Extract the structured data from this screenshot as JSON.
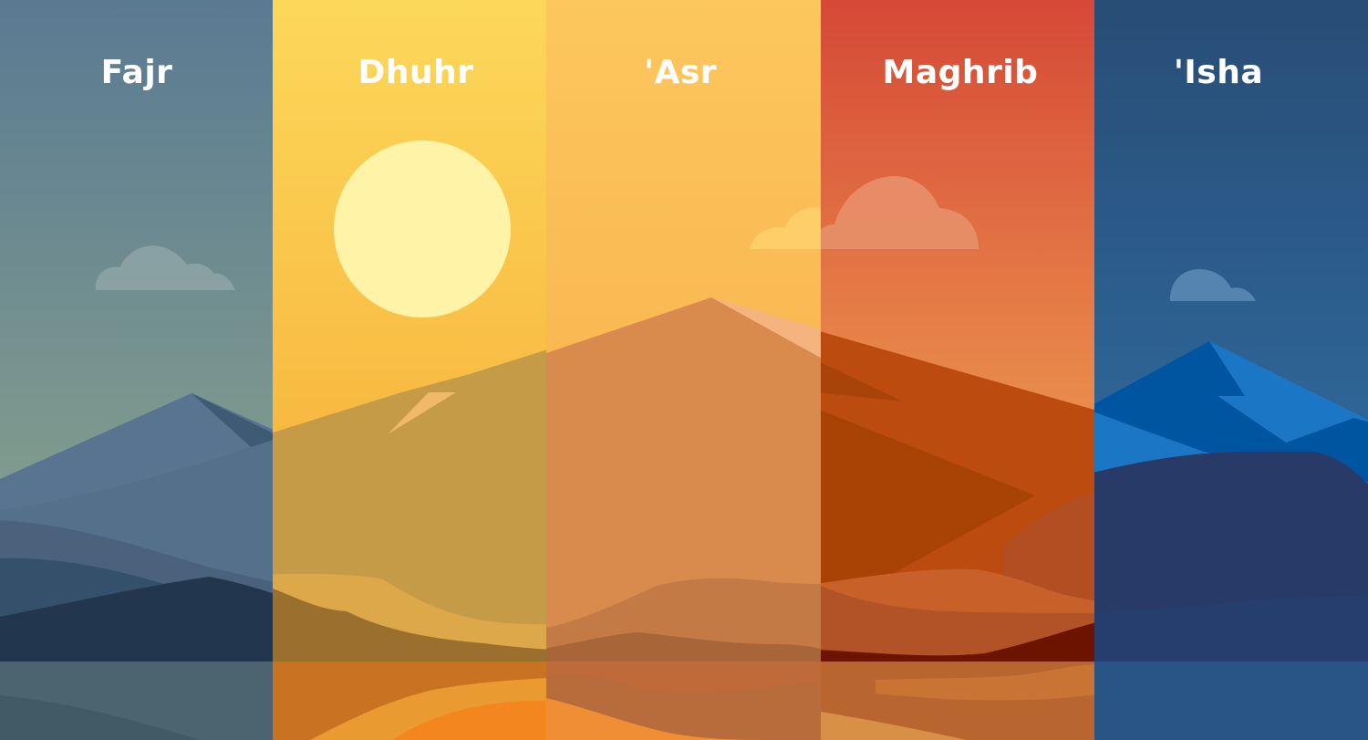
{
  "panels": [
    {
      "name": "Fajr"
    },
    {
      "name": "Dhuhr"
    },
    {
      "name": "'Asr"
    },
    {
      "name": "Maghrib"
    },
    {
      "name": "'Isha"
    }
  ],
  "colors": {
    "fajr_sky_top": "#5a7a92",
    "fajr_sky_bottom": "#8fa98a",
    "dhuhr_sky_top": "#fbd558",
    "dhuhr_sky_bottom": "#f5a02e",
    "asr_sky_top": "#fcc35c",
    "asr_sky_bottom": "#f6a640",
    "maghrib_sky_top": "#d44a37",
    "maghrib_sky_bottom": "#f0a64e",
    "isha_sky_top": "#284f78",
    "isha_sky_bottom": "#3278b0",
    "sun": "#fff3a8",
    "label_text": "#ffffff"
  }
}
